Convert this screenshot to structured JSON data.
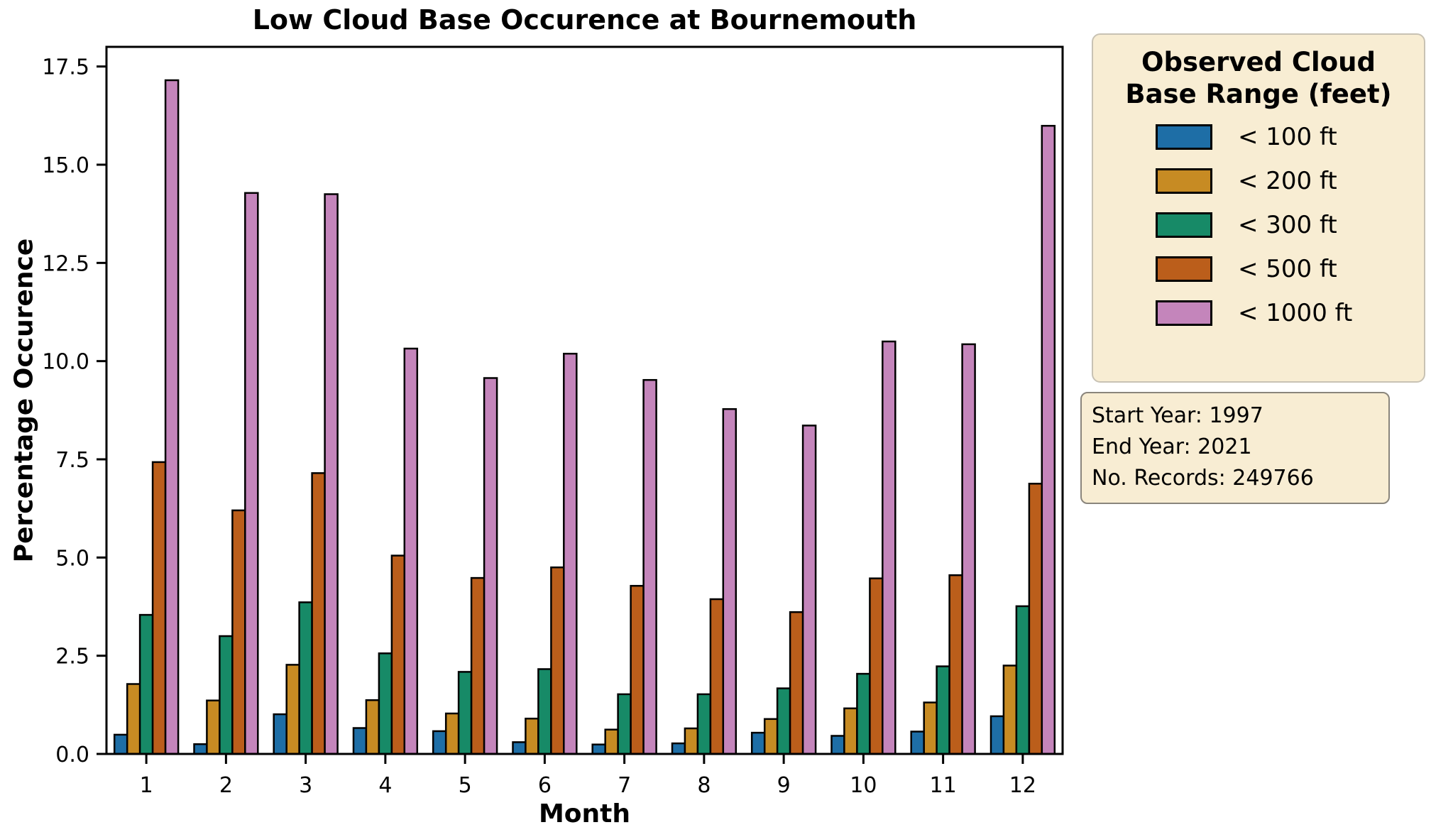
{
  "title": "Low Cloud Base Occurence at Bournemouth",
  "axes": {
    "xlabel": "Month",
    "ylabel": "Percentage Occurence",
    "ytick_labels": [
      "0.0",
      "2.5",
      "5.0",
      "7.5",
      "10.0",
      "12.5",
      "15.0",
      "17.5"
    ],
    "ytick_values": [
      0,
      2.5,
      5,
      7.5,
      10,
      12.5,
      15,
      17.5
    ]
  },
  "legend": {
    "title_lines": [
      "Observed Cloud",
      "Base Range (feet)"
    ]
  },
  "info_box": {
    "lines": [
      "Start Year: 1997",
      "End Year: 2021",
      "No. Records: 249766"
    ]
  },
  "colors": {
    "background": "#ffffff",
    "axis": "#000000",
    "bar_edge": "#000000",
    "box_bg": "#f8edd3",
    "legend_border": "#c8c2b4",
    "info_border": "#8a857c"
  },
  "chart_data": {
    "type": "bar",
    "title": "Low Cloud Base Occurence at Bournemouth",
    "xlabel": "Month",
    "ylabel": "Percentage Occurence",
    "categories": [
      1,
      2,
      3,
      4,
      5,
      6,
      7,
      8,
      9,
      10,
      11,
      12
    ],
    "series": [
      {
        "name": "< 100 ft",
        "color": "#1e6ea6",
        "values": [
          0.49,
          0.25,
          1.01,
          0.66,
          0.58,
          0.3,
          0.24,
          0.27,
          0.54,
          0.46,
          0.57,
          0.96
        ]
      },
      {
        "name": "< 200 ft",
        "color": "#c78b23",
        "values": [
          1.78,
          1.36,
          2.27,
          1.37,
          1.03,
          0.9,
          0.62,
          0.65,
          0.89,
          1.16,
          1.31,
          2.25
        ]
      },
      {
        "name": "< 300 ft",
        "color": "#178a67",
        "values": [
          3.54,
          3.0,
          3.86,
          2.56,
          2.09,
          2.16,
          1.52,
          1.52,
          1.67,
          2.04,
          2.23,
          3.76
        ]
      },
      {
        "name": "< 500 ft",
        "color": "#bb5e1b",
        "values": [
          7.43,
          6.2,
          7.15,
          5.05,
          4.48,
          4.75,
          4.28,
          3.94,
          3.61,
          4.47,
          4.55,
          6.88
        ]
      },
      {
        "name": "< 1000 ft",
        "color": "#c485bb",
        "values": [
          17.15,
          14.28,
          14.25,
          10.32,
          9.57,
          10.19,
          9.52,
          8.78,
          8.36,
          10.5,
          10.43,
          15.99
        ]
      }
    ],
    "ylim": [
      0,
      18
    ],
    "grid": false,
    "legend_position": "outside upper right",
    "legend_title": "Observed Cloud Base Range (feet)",
    "bar_group_width_fraction": 0.8,
    "annotations": [
      "Start Year: 1997",
      "End Year: 2021",
      "No. Records: 249766"
    ]
  }
}
